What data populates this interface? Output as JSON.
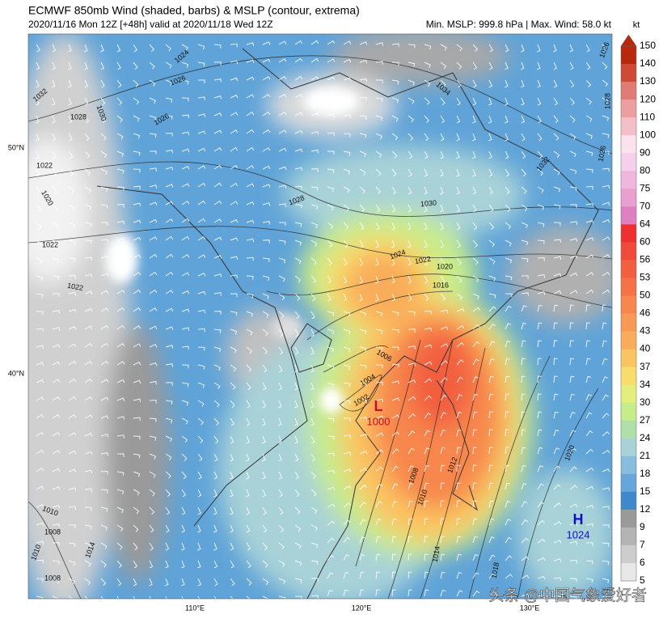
{
  "header": {
    "title": "ECMWF 850mb Wind (shaded, barbs) & MSLP (contour, extrema)",
    "subtitle": "2020/11/16 Mon 12Z [+48h] valid at 2020/11/18 Wed 12Z",
    "stats": "Min. MSLP: 999.8 hPa | Max. Wind: 58.0 kt"
  },
  "colorbar": {
    "unit": "kt",
    "levels": [
      "150",
      "140",
      "130",
      "120",
      "110",
      "100",
      "90",
      "80",
      "75",
      "70",
      "64",
      "60",
      "56",
      "53",
      "50",
      "46",
      "43",
      "40",
      "37",
      "34",
      "30",
      "27",
      "24",
      "21",
      "18",
      "15",
      "12",
      "9",
      "7",
      "6",
      "5"
    ],
    "colors": [
      "#b8280c",
      "#cf4a35",
      "#e07b75",
      "#ec9ea0",
      "#f4bfc8",
      "#fbe2ec",
      "#f6d0ea",
      "#efb7dd",
      "#e8a0d1",
      "#df80c0",
      "#ee3030",
      "#f04a3a",
      "#f25f40",
      "#f57148",
      "#f7874e",
      "#f89a55",
      "#f9ad5a",
      "#fbc462",
      "#f8dc6c",
      "#e3ee7b",
      "#c7ec8a",
      "#b0e0a8",
      "#a8d2d8",
      "#88bde0",
      "#66a6da",
      "#3f88cc",
      "#9a9a9a",
      "#b4b4b4",
      "#cdcdcd",
      "#e8e8e8"
    ]
  },
  "map": {
    "lat_labels": [
      "50°N",
      "40°N"
    ],
    "lon_labels": [
      "110°E",
      "120°E",
      "130°E"
    ],
    "low": {
      "symbol": "L",
      "value": "1000"
    },
    "high": {
      "symbol": "H",
      "value": "1024"
    },
    "isobar_labels": [
      "1024",
      "1026",
      "1032",
      "1028",
      "1030",
      "1026",
      "1022",
      "1020",
      "1022",
      "1022",
      "1028",
      "1030",
      "1024",
      "1022",
      "1020",
      "1016",
      "1034",
      "1032",
      "1026",
      "1028",
      "1026",
      "1004",
      "1006",
      "1002",
      "1008",
      "1010",
      "1012",
      "1014",
      "1018",
      "1020",
      "1010",
      "1008",
      "1010",
      "1014",
      "1008"
    ]
  },
  "watermark": "头条 @中国气象爱好者"
}
